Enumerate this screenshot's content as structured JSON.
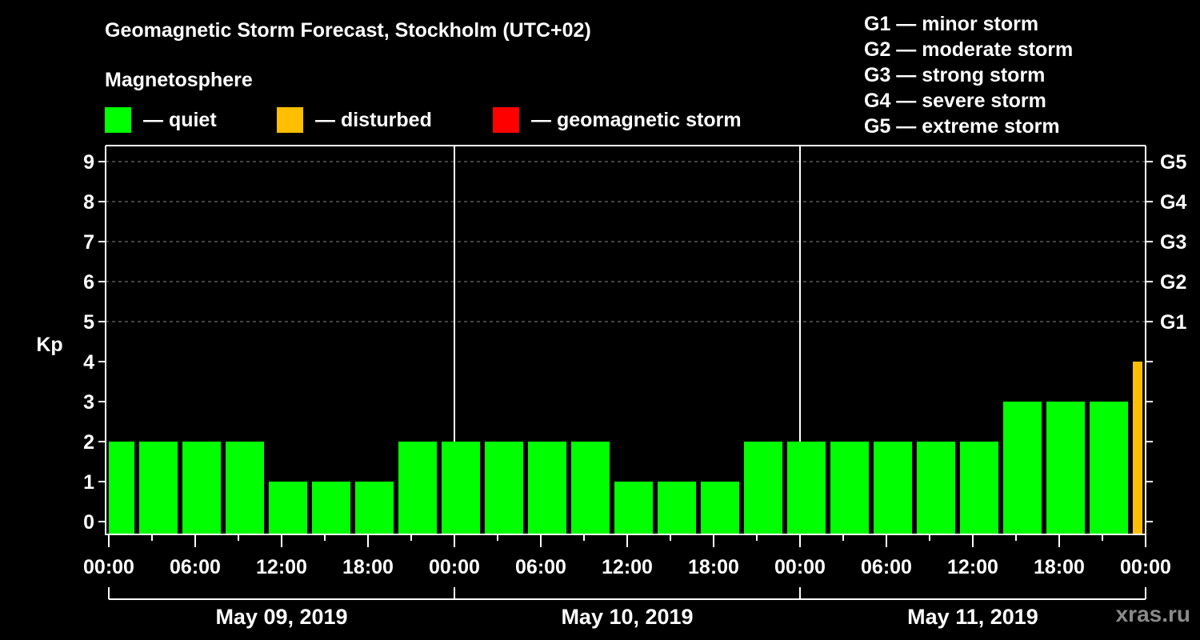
{
  "header": {
    "title": "Geomagnetic Storm Forecast, Stockholm (UTC+02)",
    "subtitle": "Magnetosphere"
  },
  "legend": [
    {
      "label": "— quiet",
      "color": "#00ff00"
    },
    {
      "label": "— disturbed",
      "color": "#ffbf00"
    },
    {
      "label": "— geomagnetic storm",
      "color": "#ff0000"
    }
  ],
  "storm_scale": [
    "G1 — minor storm",
    "G2 — moderate storm",
    "G3 — strong storm",
    "G4 — severe storm",
    "G5 — extreme storm"
  ],
  "credit": "xras.ru",
  "chart_data": {
    "type": "bar",
    "title": "Geomagnetic Storm Forecast, Stockholm (UTC+02)",
    "ylabel": "Kp",
    "ylim": [
      0,
      9
    ],
    "yticks": [
      0,
      1,
      2,
      3,
      4,
      5,
      6,
      7,
      8,
      9
    ],
    "right_axis_labels": [
      {
        "kp": 5,
        "label": "G1"
      },
      {
        "kp": 6,
        "label": "G2"
      },
      {
        "kp": 7,
        "label": "G3"
      },
      {
        "kp": 8,
        "label": "G4"
      },
      {
        "kp": 9,
        "label": "G5"
      }
    ],
    "grid": "dashed horizontal at Kp 5-9",
    "xtick_labels": [
      "00:00",
      "06:00",
      "12:00",
      "18:00",
      "00:00",
      "06:00",
      "12:00",
      "18:00",
      "00:00",
      "06:00",
      "12:00",
      "18:00",
      "00:00"
    ],
    "days": [
      "May 09, 2019",
      "May 10, 2019",
      "May 11, 2019"
    ],
    "interval_hours": 3,
    "categories": [
      "May 09 00:00",
      "May 09 02:00",
      "May 09 05:00",
      "May 09 08:00",
      "May 09 11:00",
      "May 09 14:00",
      "May 09 17:00",
      "May 09 20:00",
      "May 09 23:00",
      "May 10 02:00",
      "May 10 05:00",
      "May 10 08:00",
      "May 10 11:00",
      "May 10 14:00",
      "May 10 17:00",
      "May 10 20:00",
      "May 10 23:00",
      "May 11 02:00",
      "May 11 05:00",
      "May 11 08:00",
      "May 11 11:00",
      "May 11 14:00",
      "May 11 17:00",
      "May 11 20:00",
      "May 11 23:00"
    ],
    "values": [
      2,
      2,
      2,
      2,
      1,
      1,
      1,
      2,
      2,
      2,
      2,
      2,
      1,
      1,
      1,
      2,
      2,
      2,
      2,
      2,
      2,
      3,
      3,
      3,
      4
    ],
    "colors": [
      "quiet",
      "quiet",
      "quiet",
      "quiet",
      "quiet",
      "quiet",
      "quiet",
      "quiet",
      "quiet",
      "quiet",
      "quiet",
      "quiet",
      "quiet",
      "quiet",
      "quiet",
      "quiet",
      "quiet",
      "quiet",
      "quiet",
      "quiet",
      "quiet",
      "quiet",
      "quiet",
      "quiet",
      "disturbed"
    ],
    "color_map": {
      "quiet": "#00ff00",
      "disturbed": "#ffbf00",
      "storm": "#ff0000"
    }
  }
}
